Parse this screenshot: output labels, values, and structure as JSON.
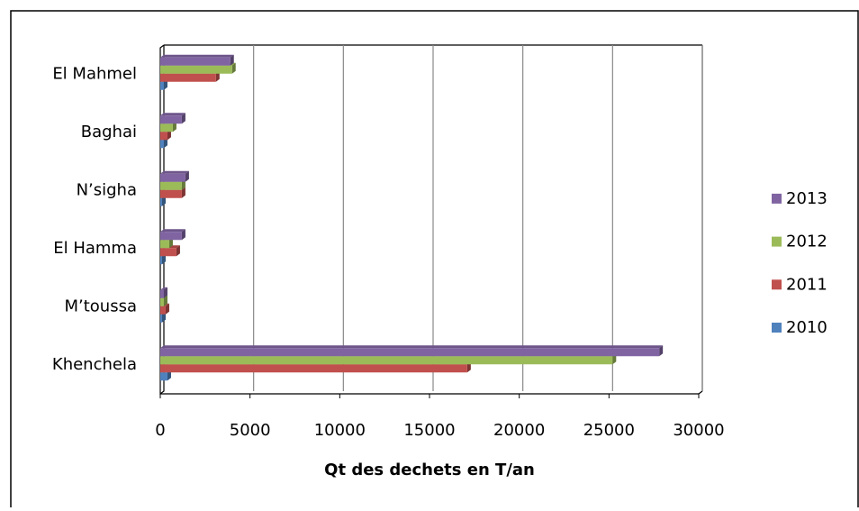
{
  "chart_data": {
    "type": "bar",
    "orientation": "horizontal",
    "x_label": "Qt des dechets en T/an",
    "categories": [
      "Khenchela",
      "M’toussa",
      "El Hamma",
      "N’sigha",
      "Baghai",
      "El Mahmel"
    ],
    "series": [
      {
        "name": "2010",
        "color": "#4f81bd",
        "values": [
          400,
          100,
          100,
          100,
          200,
          200
        ]
      },
      {
        "name": "2011",
        "color": "#c0504d",
        "values": [
          17100,
          300,
          900,
          1200,
          400,
          3100
        ]
      },
      {
        "name": "2012",
        "color": "#9bbb59",
        "values": [
          25200,
          200,
          500,
          1200,
          700,
          4000
        ]
      },
      {
        "name": "2013",
        "color": "#8064a2",
        "values": [
          27800,
          200,
          1200,
          1400,
          1200,
          3900
        ]
      }
    ],
    "xlim": [
      0,
      30000
    ],
    "xticks": [
      0,
      5000,
      10000,
      15000,
      20000,
      25000,
      30000
    ],
    "grid": true,
    "legend": "right"
  }
}
